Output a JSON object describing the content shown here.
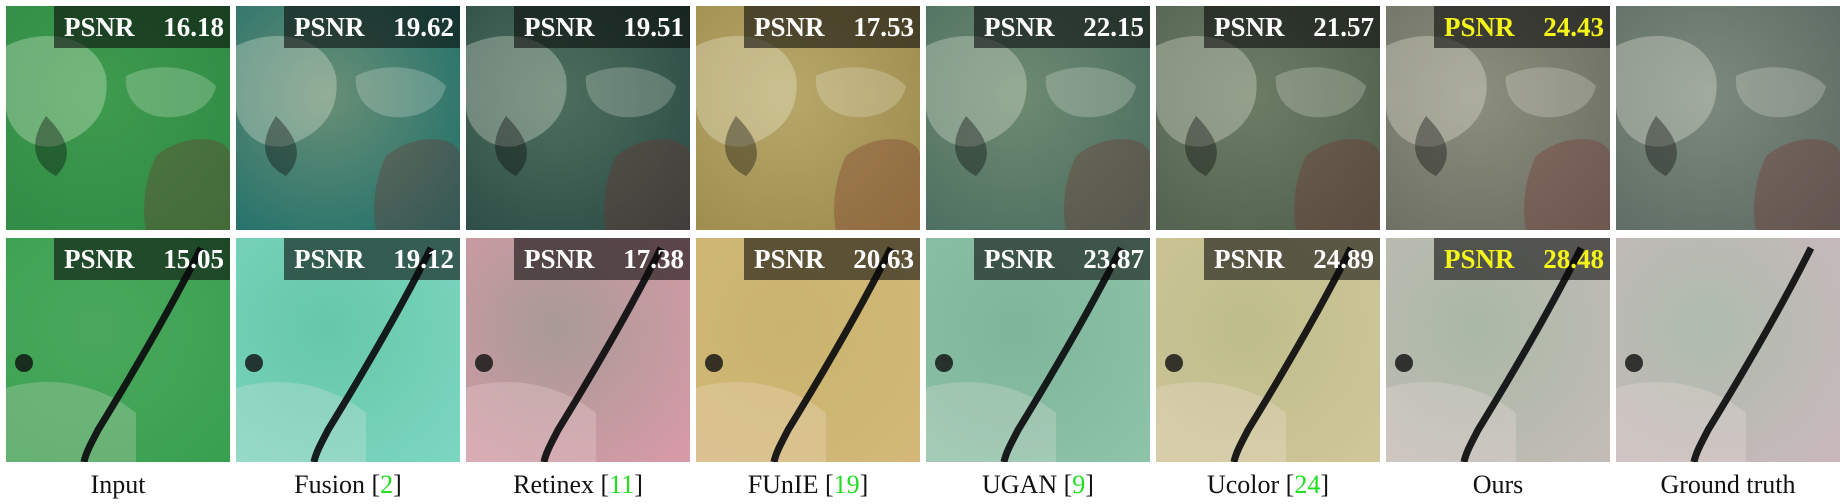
{
  "columns": [
    {
      "label": "Input",
      "ref": "",
      "psnr": [
        "16.18",
        "15.05"
      ],
      "best": false,
      "tints": [
        "#3f9b4f",
        "#4aa85e"
      ],
      "overlay": [
        "#2f8a44",
        "#39a050"
      ]
    },
    {
      "label": "Fusion",
      "ref": "2",
      "psnr": [
        "19.62",
        "19.12"
      ],
      "best": false,
      "tints": [
        "#6a8f76",
        "#66c7a8"
      ],
      "overlay": [
        "#1d6f6a",
        "#7bd6c0"
      ]
    },
    {
      "label": "Retinex",
      "ref": "11",
      "psnr": [
        "19.51",
        "17.38"
      ],
      "best": false,
      "tints": [
        "#4e6f5e",
        "#a89a96"
      ],
      "overlay": [
        "#2a4a44",
        "#d79aa8"
      ]
    },
    {
      "label": "FUnIE",
      "ref": "19",
      "psnr": [
        "17.53",
        "20.63"
      ],
      "best": false,
      "tints": [
        "#b7a86a",
        "#c9b36e"
      ],
      "overlay": [
        "#9c8a4c",
        "#d3b878"
      ]
    },
    {
      "label": "UGAN",
      "ref": "9",
      "psnr": [
        "22.15",
        "23.87"
      ],
      "best": false,
      "tints": [
        "#6e8a72",
        "#7fb59a"
      ],
      "overlay": [
        "#4a6d5f",
        "#8cc3a9"
      ]
    },
    {
      "label": "Ucolor",
      "ref": "24",
      "psnr": [
        "21.57",
        "24.89"
      ],
      "best": false,
      "tints": [
        "#6d7d66",
        "#bfbd8b"
      ],
      "overlay": [
        "#4f5f4d",
        "#cfc69a"
      ]
    },
    {
      "label": "Ours",
      "ref": "",
      "psnr": [
        "24.43",
        "28.48"
      ],
      "best": true,
      "tints": [
        "#8c8e7e",
        "#a9b8a6"
      ],
      "overlay": [
        "#6b6d62",
        "#c3bcb6"
      ]
    },
    {
      "label": "Ground truth",
      "ref": "",
      "psnr": [
        "",
        ""
      ],
      "best": false,
      "tints": [
        "#7d8a7e",
        "#aebcad"
      ],
      "overlay": [
        "#5c6a62",
        "#c8b8bb"
      ]
    }
  ],
  "psnr_label": "PSNR",
  "colors": {
    "best_score": "#f5f51a",
    "citation": "#22dd22",
    "badge_bg": "#080808"
  }
}
